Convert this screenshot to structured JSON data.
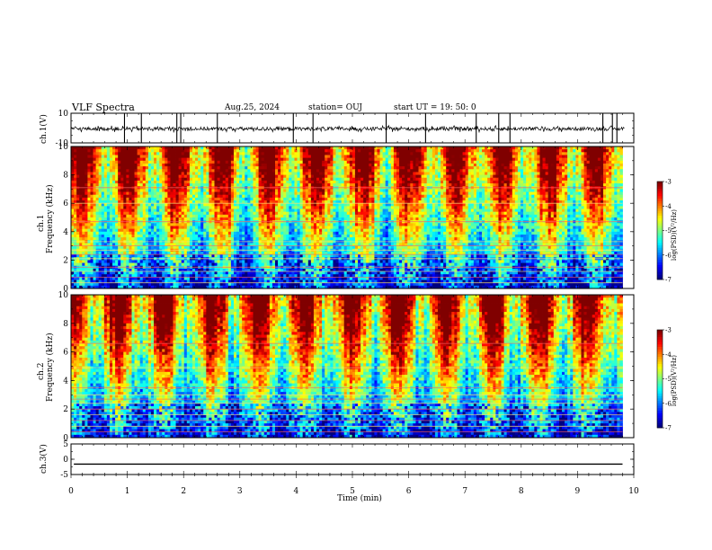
{
  "header": {
    "title": "VLF Spectra",
    "date": "Aug.25, 2024",
    "station": "station= OUJ",
    "start": "start  UT =    19: 50: 0"
  },
  "chart_data": [
    {
      "type": "line",
      "panel": "ch1-waveform",
      "ylabel": "ch.1(V)",
      "ylim": [
        -10,
        10
      ],
      "yticks": [
        10,
        -10
      ],
      "xlim": [
        0,
        10
      ],
      "baseline": -0.5,
      "noise_amplitude": 1.2,
      "spike_times_min": [
        0.95,
        1.25,
        1.88,
        1.95,
        2.6,
        3.95,
        4.3,
        5.6,
        6.3,
        7.2,
        7.6,
        7.8,
        9.45,
        9.62,
        9.7
      ]
    },
    {
      "type": "heatmap",
      "panel": "ch1-spectrogram",
      "ylabel": "ch.1\nFrequency (kHz)",
      "ylim": [
        0,
        10
      ],
      "yticks": [
        0,
        2,
        4,
        6,
        8,
        10
      ],
      "xlim": [
        0,
        10
      ],
      "data_end_min": 9.8,
      "colorbar": {
        "label": "log(PSD)(V²/Hz)",
        "range": [
          -7,
          -3
        ],
        "ticks": [
          -3,
          -4,
          -5,
          -6,
          -7
        ]
      },
      "carrier_lines_khz": [
        7.1,
        6.0,
        4.7,
        3.3,
        3.0,
        2.7,
        2.4,
        2.1,
        1.5,
        1.2,
        0.8,
        0.4
      ]
    },
    {
      "type": "heatmap",
      "panel": "ch2-spectrogram",
      "ylabel": "ch.2\nFrequency (kHz)",
      "ylim": [
        0,
        10
      ],
      "yticks": [
        0,
        2,
        4,
        6,
        8,
        10
      ],
      "xlim": [
        0,
        10
      ],
      "data_end_min": 9.8,
      "colorbar": {
        "label": "log(PSD)(V²/Hz)",
        "range": [
          -7,
          -3
        ],
        "ticks": [
          -3,
          -4,
          -5,
          -6,
          -7
        ]
      },
      "carrier_lines_khz": [
        6.6,
        4.9,
        3.5,
        3.0,
        2.7,
        2.4,
        2.0,
        1.6,
        1.2,
        0.8,
        0.4
      ]
    },
    {
      "type": "line",
      "panel": "ch3-waveform",
      "ylabel": "ch.3(V)",
      "ylim": [
        -5,
        5
      ],
      "yticks": [
        5,
        0,
        -5
      ],
      "xlim": [
        0,
        10
      ],
      "level": -1.6
    }
  ],
  "x_axis": {
    "label": "Time (min)",
    "ticks": [
      0,
      1,
      2,
      3,
      4,
      5,
      6,
      7,
      8,
      9,
      10
    ]
  },
  "colors": {
    "frame": "#000000",
    "background": "#ffffff"
  }
}
